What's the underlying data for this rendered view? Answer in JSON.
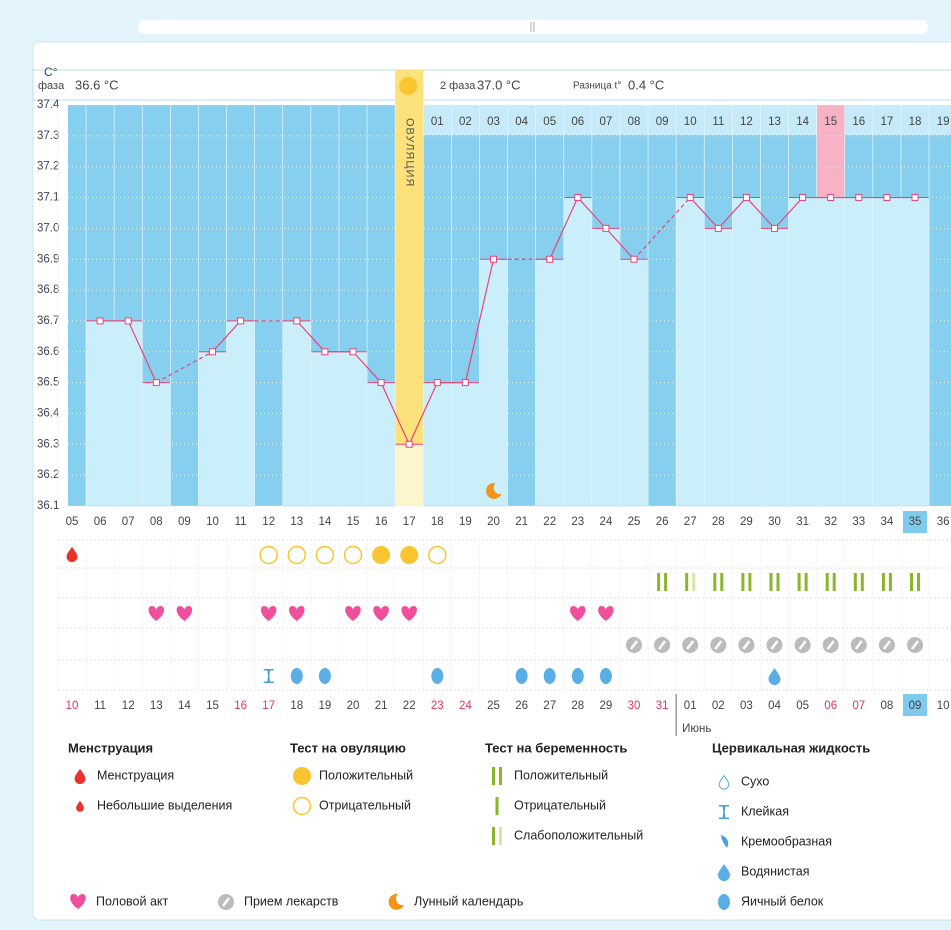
{
  "header": {
    "axis_unit": "C°",
    "phase1_label": "фаза",
    "phase1_temp": "36.6 °C",
    "phase2_label": "2 фаза",
    "phase2_temp": "37.0 °C",
    "diff_label": "Разница t°",
    "diff": "0.4 °C"
  },
  "chart_data": {
    "type": "bar",
    "categories": [
      "05",
      "06",
      "07",
      "08",
      "09",
      "10",
      "11",
      "12",
      "13",
      "14",
      "15",
      "16",
      "17",
      "18",
      "19",
      "20",
      "21",
      "22",
      "23",
      "24",
      "25",
      "26",
      "27",
      "28",
      "29",
      "30",
      "31",
      "32",
      "33",
      "34",
      "35",
      "36"
    ],
    "values": [
      null,
      36.7,
      36.7,
      36.5,
      null,
      36.6,
      36.7,
      null,
      36.7,
      36.6,
      36.6,
      36.5,
      36.3,
      36.5,
      36.5,
      36.9,
      null,
      36.9,
      37.1,
      37.0,
      36.9,
      null,
      37.1,
      37.0,
      37.1,
      37.0,
      37.1,
      37.1,
      37.1,
      37.1,
      37.1,
      null
    ],
    "ylim": [
      36.1,
      37.4
    ],
    "yticks": [
      37.4,
      37.3,
      37.2,
      37.1,
      {
        "value": 37,
        "label": "37.0"
      },
      36.9,
      36.8,
      36.7,
      36.6,
      36.5,
      36.4,
      36.3,
      36.2,
      36.1
    ],
    "grid": true,
    "bar_color": "#cbeefb",
    "line_color": "#e8457a",
    "ovulation_day": "17",
    "ovulation_label": "ОВУЛЯЦИЯ",
    "phase2_start": "18",
    "phase2_days": [
      "01",
      "02",
      "03",
      "04",
      "05",
      "06",
      "07",
      "08",
      "09",
      "10",
      "11",
      "12",
      "13",
      "14",
      "15",
      "16",
      "17",
      "18",
      "19"
    ],
    "phase2_highlight": "15",
    "today": "35",
    "moon_day": "20",
    "dates": [
      "10",
      "11",
      "12",
      "13",
      "14",
      "15",
      "16",
      "17",
      "18",
      "19",
      "20",
      "21",
      "22",
      "23",
      "24",
      "25",
      "26",
      "27",
      "28",
      "29",
      "30",
      "31",
      "01",
      "02",
      "03",
      "04",
      "05",
      "06",
      "07",
      "08",
      "09",
      "10"
    ],
    "weekend": [
      true,
      false,
      false,
      false,
      false,
      false,
      true,
      true,
      false,
      false,
      false,
      false,
      false,
      true,
      true,
      false,
      false,
      false,
      false,
      false,
      true,
      true,
      false,
      false,
      false,
      false,
      false,
      true,
      true,
      false,
      false,
      false
    ],
    "month_label": "Июнь",
    "month_start": "01",
    "symbols": {
      "menstruation": {
        "05": "menstruation"
      },
      "ovulation_test": {
        "12": "ovu_neg",
        "13": "ovu_neg",
        "14": "ovu_neg",
        "15": "ovu_neg",
        "16": "ovu_pos",
        "17": "ovu_pos",
        "18": "ovu_neg"
      },
      "pregnancy_test": {
        "26": "preg_pos",
        "27": "preg_weak",
        "28": "preg_pos",
        "29": "preg_pos",
        "30": "preg_pos",
        "31": "preg_pos",
        "32": "preg_pos",
        "33": "preg_pos",
        "34": "preg_pos",
        "35": "preg_pos"
      },
      "sex": {
        "08": "sex",
        "09": "sex",
        "12": "sex",
        "13": "sex",
        "15": "sex",
        "16": "sex",
        "17": "sex",
        "23": "sex",
        "24": "sex"
      },
      "medication": {
        "25": "pill",
        "26": "pill",
        "27": "pill",
        "28": "pill",
        "29": "pill",
        "30": "pill",
        "31": "pill",
        "32": "pill",
        "33": "pill",
        "34": "pill",
        "35": "pill"
      },
      "cervical": {
        "12": "sticky",
        "13": "eggwhite",
        "14": "eggwhite",
        "18": "eggwhite",
        "21": "eggwhite",
        "22": "eggwhite",
        "23": "eggwhite",
        "24": "eggwhite",
        "30": "watery"
      }
    }
  },
  "legend": {
    "groups": [
      {
        "title": "Менструация",
        "items": [
          {
            "icon": "menstruation",
            "label": "Менструация"
          },
          {
            "icon": "spotting",
            "label": "Небольшие выделения"
          }
        ]
      },
      {
        "title": "Тест на овуляцию",
        "items": [
          {
            "icon": "ovu_pos",
            "label": "Положительный"
          },
          {
            "icon": "ovu_neg",
            "label": "Отрицательный"
          }
        ]
      },
      {
        "title": "Тест на беременность",
        "items": [
          {
            "icon": "preg_pos",
            "label": "Положительный"
          },
          {
            "icon": "preg_neg",
            "label": "Отрицательный"
          },
          {
            "icon": "preg_weak",
            "label": "Слабоположительный"
          }
        ]
      },
      {
        "title": "Цервикальная жидкость",
        "items": [
          {
            "icon": "dry",
            "label": "Сухо"
          },
          {
            "icon": "sticky",
            "label": "Клейкая"
          },
          {
            "icon": "creamy",
            "label": "Кремообразная"
          },
          {
            "icon": "watery",
            "label": "Водянистая"
          },
          {
            "icon": "eggwhite",
            "label": "Яичный белок"
          }
        ]
      }
    ],
    "extra": [
      {
        "icon": "sex",
        "label": "Половой акт"
      },
      {
        "icon": "pill",
        "label": "Прием лекарств"
      },
      {
        "icon": "moon",
        "label": "Лунный календарь"
      }
    ]
  }
}
